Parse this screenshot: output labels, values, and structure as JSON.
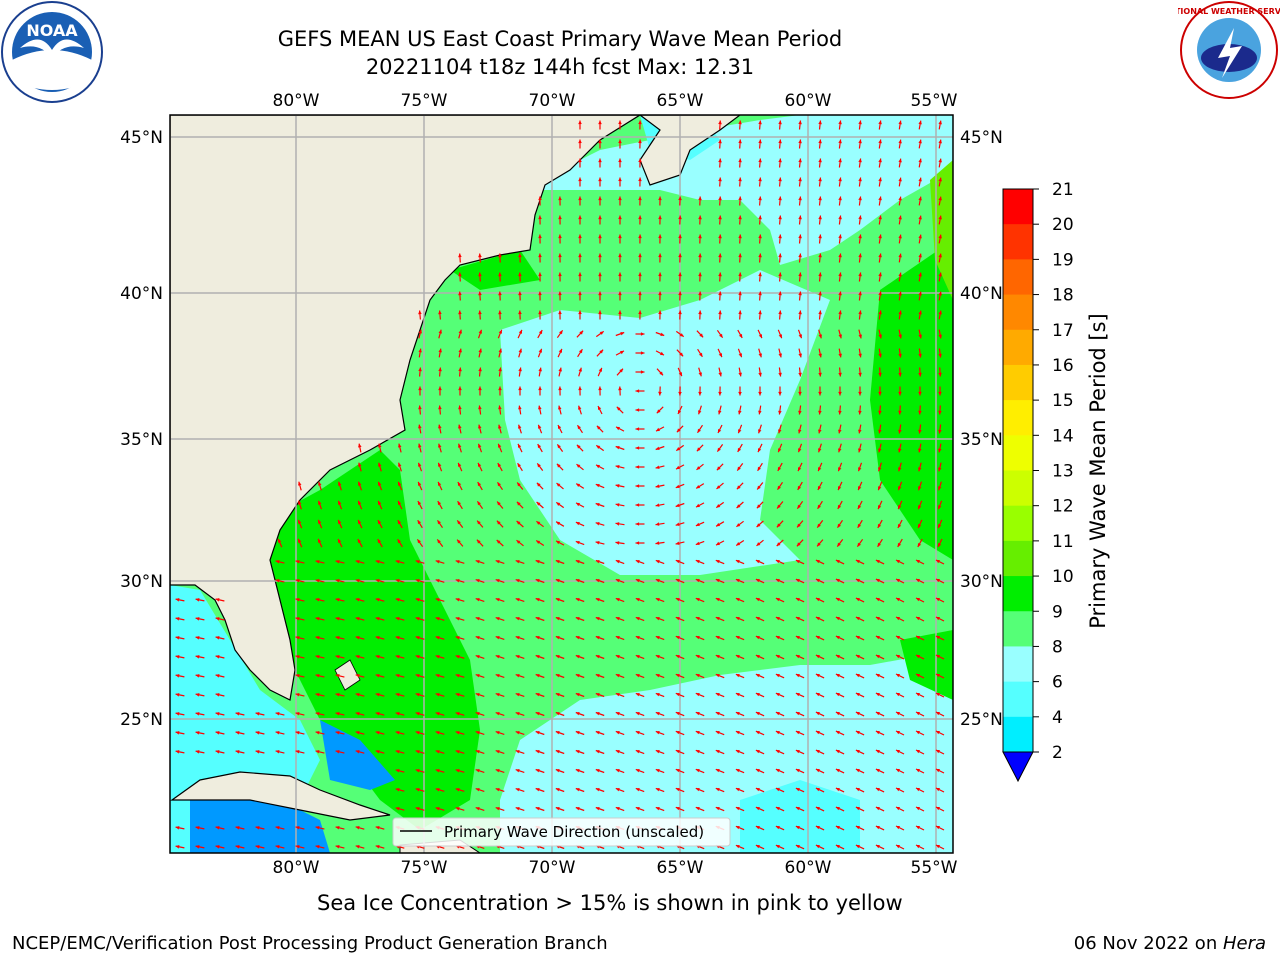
{
  "title": {
    "line1": "GEFS MEAN US East Coast Primary Wave Mean Period",
    "line2": "20221104 t18z 144h fcst   Max: 12.31"
  },
  "logos": {
    "left": "noaa-logo",
    "left_text": "NOAA",
    "right": "national-weather-service-logo",
    "right_text": "NATIONAL WEATHER SERVICE"
  },
  "map": {
    "lon_labels": [
      "80°W",
      "75°W",
      "70°W",
      "65°W",
      "60°W",
      "55°W"
    ],
    "lat_labels": [
      "45°N",
      "40°N",
      "35°N",
      "30°N",
      "25°N"
    ],
    "legend_label": "Primary Wave Direction (unscaled)",
    "arrow_color": "#ff0000",
    "land_color": "#efedde"
  },
  "colorbar": {
    "label": "Primary Wave Mean Period [s]",
    "ticks": [
      "21",
      "20",
      "19",
      "18",
      "17",
      "16",
      "15",
      "14",
      "13",
      "12",
      "11",
      "10",
      "9",
      "8",
      "6",
      "4",
      "2"
    ],
    "colors": [
      "#ff0000",
      "#ff3300",
      "#ff6600",
      "#ff8800",
      "#ffaa00",
      "#ffcc00",
      "#ffee00",
      "#eeff00",
      "#ccff00",
      "#99ff00",
      "#66ee00",
      "#00ee00",
      "#55ff77",
      "#99ffff",
      "#55ffff",
      "#00eeff",
      "#0099ff",
      "#0000ff"
    ]
  },
  "notes": {
    "sea_ice": "Sea Ice Concentration > 15% is shown in pink to yellow",
    "footer_left": "NCEP/EMC/Verification Post Processing Product Generation Branch",
    "footer_date": "06 Nov 2022 on ",
    "footer_host": "Hera"
  }
}
